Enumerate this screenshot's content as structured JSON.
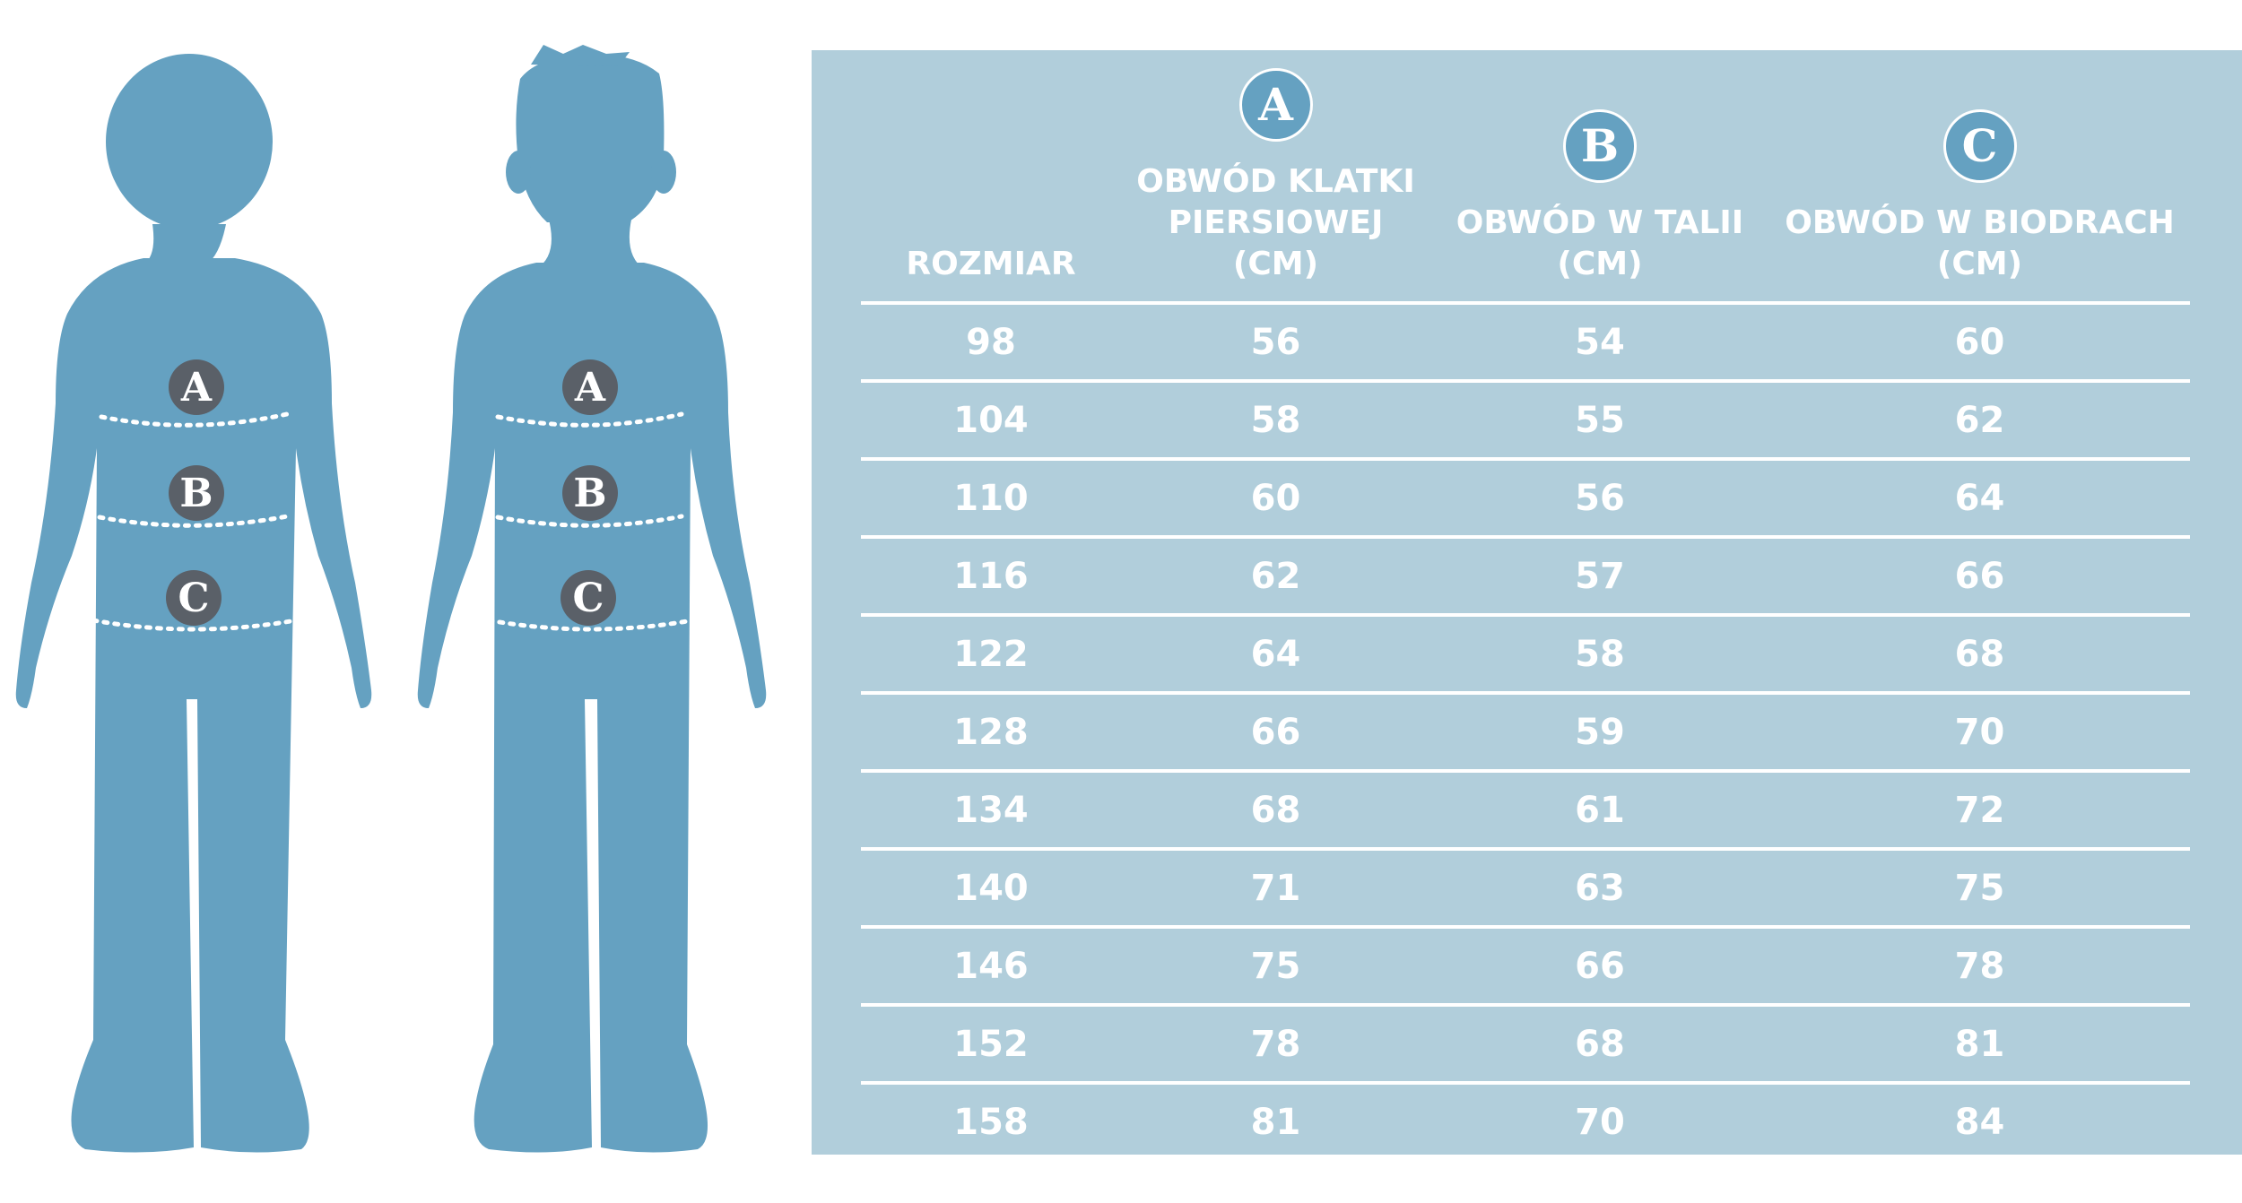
{
  "colors": {
    "silhouette": "#65a1c1",
    "table_bg": "#b1cedb",
    "marker_bg": "#5a6068",
    "text": "#ffffff"
  },
  "figures": {
    "markers": [
      "A",
      "B",
      "C"
    ]
  },
  "table": {
    "headers": {
      "size": "ROZMIAR",
      "a": {
        "badge": "A",
        "line1": "OBWÓD KLATKI",
        "line2": "PIERSIOWEJ (CM)"
      },
      "b": {
        "badge": "B",
        "line1": "OBWÓD W TALII",
        "line2": "(CM)"
      },
      "c": {
        "badge": "C",
        "line1": "OBWÓD W BIODRACH",
        "line2": "(CM)"
      }
    },
    "rows": [
      [
        "98",
        "56",
        "54",
        "60"
      ],
      [
        "104",
        "58",
        "55",
        "62"
      ],
      [
        "110",
        "60",
        "56",
        "64"
      ],
      [
        "116",
        "62",
        "57",
        "66"
      ],
      [
        "122",
        "64",
        "58",
        "68"
      ],
      [
        "128",
        "66",
        "59",
        "70"
      ],
      [
        "134",
        "68",
        "61",
        "72"
      ],
      [
        "140",
        "71",
        "63",
        "75"
      ],
      [
        "146",
        "75",
        "66",
        "78"
      ],
      [
        "152",
        "78",
        "68",
        "81"
      ],
      [
        "158",
        "81",
        "70",
        "84"
      ]
    ]
  }
}
